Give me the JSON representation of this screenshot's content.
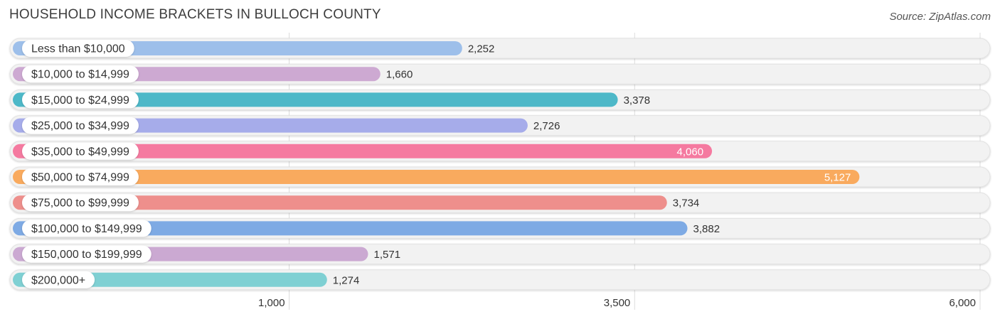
{
  "chart_data": {
    "type": "bar",
    "orientation": "horizontal",
    "title": "HOUSEHOLD INCOME BRACKETS IN BULLOCH COUNTY",
    "source": "Source: ZipAtlas.com",
    "categories": [
      "Less than $10,000",
      "$10,000 to $14,999",
      "$15,000 to $24,999",
      "$25,000 to $34,999",
      "$35,000 to $49,999",
      "$50,000 to $74,999",
      "$75,000 to $99,999",
      "$100,000 to $149,999",
      "$150,000 to $199,999",
      "$200,000+"
    ],
    "values": [
      2252,
      1660,
      3378,
      2726,
      4060,
      5127,
      3734,
      3882,
      1571,
      1274
    ],
    "value_labels": [
      "2,252",
      "1,660",
      "3,378",
      "2,726",
      "4,060",
      "5,127",
      "3,734",
      "3,882",
      "1,571",
      "1,274"
    ],
    "colors": [
      "#9dbfea",
      "#cda9d2",
      "#4db8c8",
      "#a6acea",
      "#f57aa0",
      "#f9aa5e",
      "#ee8f8c",
      "#7eaae4",
      "#cba9d2",
      "#7fd0d3"
    ],
    "xticks": [
      1000,
      3500,
      6000
    ],
    "xtick_labels": [
      "1,000",
      "3,500",
      "6,000"
    ],
    "xlim": [
      -1000,
      6000
    ],
    "grid": true
  }
}
